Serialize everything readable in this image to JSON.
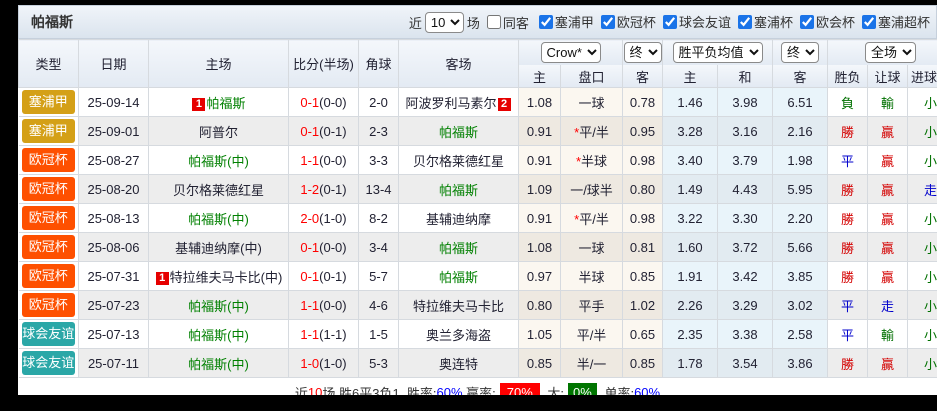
{
  "team": "帕福斯",
  "toolbar": {
    "near": "近",
    "count": "10",
    "games": "场",
    "same_away": "同客",
    "leagues": [
      "塞浦甲",
      "欧冠杯",
      "球会友谊",
      "塞浦杯",
      "欧会杯",
      "塞浦超杯"
    ]
  },
  "header": {
    "type": "类型",
    "date": "日期",
    "home": "主场",
    "score": "比分(半场)",
    "corner": "角球",
    "away": "客场",
    "sel_company": "Crow*",
    "sel_final1": "终",
    "sel_europe": "胜平负均值",
    "sel_final2": "终",
    "sel_scope": "全场",
    "sub": [
      "主",
      "盘口",
      "客",
      "主",
      "和",
      "客",
      "胜负",
      "让球",
      "进球数"
    ]
  },
  "rows": [
    {
      "league": "塞浦甲",
      "date": "25-09-14",
      "home": {
        "name": "帕福斯",
        "green": true,
        "badge": "1"
      },
      "score": "0-1",
      "half": "(0-0)",
      "corner": "2-0",
      "away": {
        "name": "阿波罗利马素尔",
        "green": false,
        "badge": "2"
      },
      "asian": [
        "1.08",
        "一球",
        "0.78"
      ],
      "star": false,
      "europe": [
        "1.46",
        "3.98",
        "6.51"
      ],
      "results": [
        [
          "負",
          "g"
        ],
        [
          "輸",
          "g"
        ],
        [
          "小",
          "g"
        ]
      ]
    },
    {
      "league": "塞浦甲",
      "date": "25-09-01",
      "home": {
        "name": "阿普尔",
        "green": false
      },
      "score": "0-1",
      "half": "(0-1)",
      "corner": "2-3",
      "away": {
        "name": "帕福斯",
        "green": true
      },
      "asian": [
        "0.91",
        "平/半",
        "0.95"
      ],
      "star": true,
      "europe": [
        "3.28",
        "3.16",
        "2.16"
      ],
      "results": [
        [
          "勝",
          "r"
        ],
        [
          "贏",
          "r"
        ],
        [
          "小",
          "g"
        ]
      ]
    },
    {
      "league": "欧冠杯",
      "date": "25-08-27",
      "home": {
        "name": "帕福斯(中)",
        "green": true
      },
      "score": "1-1",
      "half": "(0-0)",
      "corner": "3-3",
      "away": {
        "name": "贝尔格莱德红星",
        "green": false
      },
      "asian": [
        "0.91",
        "半球",
        "0.98"
      ],
      "star": true,
      "europe": [
        "3.40",
        "3.79",
        "1.98"
      ],
      "results": [
        [
          "平",
          "b"
        ],
        [
          "贏",
          "r"
        ],
        [
          "小",
          "g"
        ]
      ]
    },
    {
      "league": "欧冠杯",
      "date": "25-08-20",
      "home": {
        "name": "贝尔格莱德红星",
        "green": false
      },
      "score": "1-2",
      "half": "(0-1)",
      "corner": "13-4",
      "away": {
        "name": "帕福斯",
        "green": true
      },
      "asian": [
        "1.09",
        "一/球半",
        "0.80"
      ],
      "star": false,
      "europe": [
        "1.49",
        "4.43",
        "5.95"
      ],
      "results": [
        [
          "勝",
          "r"
        ],
        [
          "贏",
          "r"
        ],
        [
          "走",
          "b"
        ]
      ]
    },
    {
      "league": "欧冠杯",
      "date": "25-08-13",
      "home": {
        "name": "帕福斯(中)",
        "green": true
      },
      "score": "2-0",
      "half": "(1-0)",
      "corner": "8-2",
      "away": {
        "name": "基辅迪纳摩",
        "green": false
      },
      "asian": [
        "0.91",
        "平/半",
        "0.98"
      ],
      "star": true,
      "europe": [
        "3.22",
        "3.30",
        "2.20"
      ],
      "results": [
        [
          "勝",
          "r"
        ],
        [
          "贏",
          "r"
        ],
        [
          "小",
          "g"
        ]
      ]
    },
    {
      "league": "欧冠杯",
      "date": "25-08-06",
      "home": {
        "name": "基辅迪纳摩(中)",
        "green": false
      },
      "score": "0-1",
      "half": "(0-0)",
      "corner": "3-4",
      "away": {
        "name": "帕福斯",
        "green": true
      },
      "asian": [
        "1.08",
        "一球",
        "0.81"
      ],
      "star": false,
      "europe": [
        "1.60",
        "3.72",
        "5.66"
      ],
      "results": [
        [
          "勝",
          "r"
        ],
        [
          "贏",
          "r"
        ],
        [
          "小",
          "g"
        ]
      ]
    },
    {
      "league": "欧冠杯",
      "date": "25-07-31",
      "home": {
        "name": "特拉维夫马卡比(中)",
        "green": false,
        "badge": "1"
      },
      "score": "0-1",
      "half": "(0-1)",
      "corner": "5-7",
      "away": {
        "name": "帕福斯",
        "green": true
      },
      "asian": [
        "0.97",
        "半球",
        "0.85"
      ],
      "star": false,
      "europe": [
        "1.91",
        "3.42",
        "3.85"
      ],
      "results": [
        [
          "勝",
          "r"
        ],
        [
          "贏",
          "r"
        ],
        [
          "小",
          "g"
        ]
      ]
    },
    {
      "league": "欧冠杯",
      "date": "25-07-23",
      "home": {
        "name": "帕福斯(中)",
        "green": true
      },
      "score": "1-1",
      "half": "(0-0)",
      "corner": "4-6",
      "away": {
        "name": "特拉维夫马卡比",
        "green": false
      },
      "asian": [
        "0.80",
        "平手",
        "1.02"
      ],
      "star": false,
      "europe": [
        "2.26",
        "3.29",
        "3.02"
      ],
      "results": [
        [
          "平",
          "b"
        ],
        [
          "走",
          "b"
        ],
        [
          "小",
          "g"
        ]
      ]
    },
    {
      "league": "球会友谊",
      "date": "25-07-13",
      "home": {
        "name": "帕福斯(中)",
        "green": true
      },
      "score": "1-1",
      "half": "(1-1)",
      "corner": "1-5",
      "away": {
        "name": "奥兰多海盗",
        "green": false
      },
      "asian": [
        "1.05",
        "平/半",
        "0.65"
      ],
      "star": false,
      "europe": [
        "2.35",
        "3.38",
        "2.58"
      ],
      "results": [
        [
          "平",
          "b"
        ],
        [
          "輸",
          "g"
        ],
        [
          "小",
          "g"
        ]
      ]
    },
    {
      "league": "球会友谊",
      "date": "25-07-11",
      "home": {
        "name": "帕福斯(中)",
        "green": true
      },
      "score": "1-0",
      "half": "(1-0)",
      "corner": "5-3",
      "away": {
        "name": "奥连特",
        "green": false
      },
      "asian": [
        "0.85",
        "半/一",
        "0.85"
      ],
      "star": false,
      "europe": [
        "1.78",
        "3.54",
        "3.86"
      ],
      "results": [
        [
          "勝",
          "r"
        ],
        [
          "贏",
          "r"
        ],
        [
          "小",
          "g"
        ]
      ]
    }
  ],
  "summary": {
    "segments": [
      {
        "t": "近",
        "s": "plain"
      },
      {
        "t": "10",
        "s": "red"
      },
      {
        "t": "场,胜6平3负1, 胜率:",
        "s": "plain"
      },
      {
        "t": "60%",
        "s": "blue"
      },
      {
        "t": " 赢率:",
        "s": "plain"
      },
      {
        "t": "70%",
        "s": "badge-red"
      },
      {
        "t": " 大:",
        "s": "plain"
      },
      {
        "t": "0%",
        "s": "badge-green"
      },
      {
        "t": " 单率:",
        "s": "plain"
      },
      {
        "t": "60%",
        "s": "blue"
      }
    ]
  },
  "colors": {
    "league": {
      "塞浦甲": "#d4a017",
      "欧冠杯": "#fe5000",
      "球会友谊": "#2aa7a7"
    },
    "result": {
      "r": "#d40000",
      "g": "#007000",
      "b": "#0000cc"
    },
    "team_green": "#008000",
    "score_red": "#ff0000",
    "rate_blue": "#0000ff",
    "badge_red_bg": "#ff0000",
    "badge_green_bg": "#007500"
  }
}
